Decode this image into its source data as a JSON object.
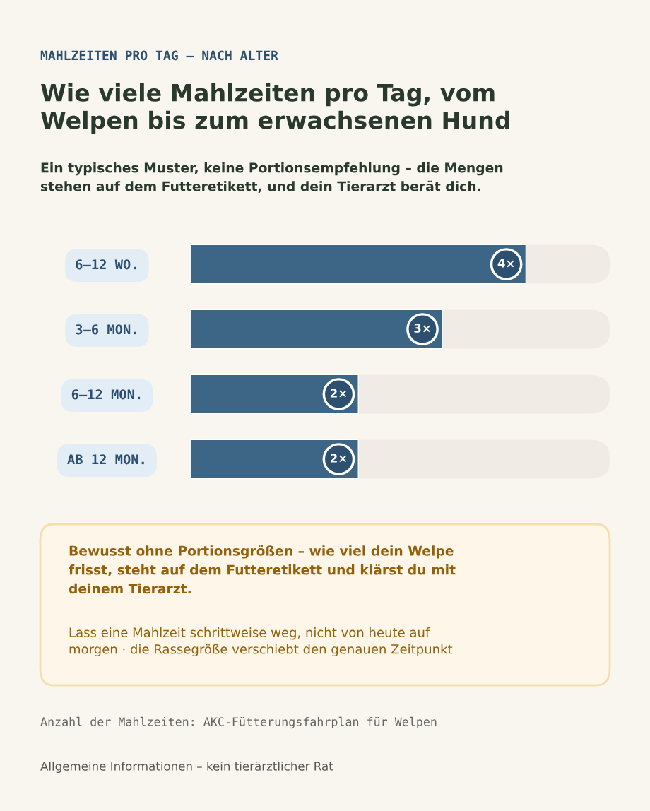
{
  "chart_data": {
    "type": "bar",
    "orientation": "horizontal",
    "title": "Wie viele Mahlzeiten pro Tag, vom\nWelpen bis zum erwachsenen Hund",
    "subtitle": "Ein typisches Muster, keine Portionsempfehlung – die Mengen\nstehen auf dem Futteretikett, und dein Tierarzt berät dich.",
    "categories": [
      "6–12 WO.",
      "3–6 MON.",
      "6–12 MON.",
      "AB 12 MON."
    ],
    "values": [
      4,
      3,
      2,
      2
    ],
    "value_labels": [
      "4×",
      "3×",
      "2×",
      "2×"
    ],
    "color": "#3d6585",
    "xlim": [
      0,
      5
    ],
    "annotations": [
      "MAHLZEITEN PRO TAG – NACH ALTER",
      "Bewusst ohne Portionsgrößen – wie viel dein Welpe\nfrisst, steht auf dem Futteretikett und klärst du mit\ndeinem Tierarzt.",
      "Lass eine Mahlzeit schrittweise weg, nicht von heute auf\nmorgen · die Rassegröße verschiebt den genauen Zeitpunkt",
      "Anzahl der Mahlzeiten: AKC-Fütterungsfahrplan für Welpen",
      "Allgemeine Informationen – kein tierärztlicher Rat"
    ]
  }
}
